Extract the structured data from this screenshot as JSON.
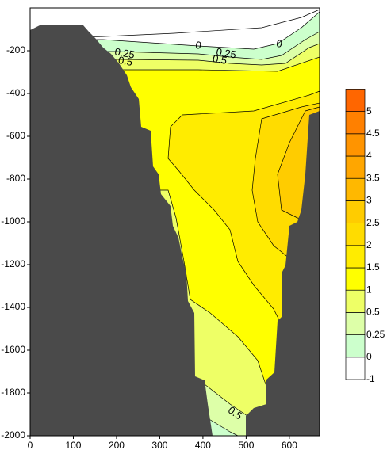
{
  "chart_data": {
    "type": "contour",
    "xlim": [
      0,
      670
    ],
    "xticks": [
      0,
      100,
      200,
      300,
      400,
      500,
      600
    ],
    "ylim": [
      -2000,
      0
    ],
    "yticks": [
      -200,
      -400,
      -600,
      -800,
      -1000,
      -1200,
      -1400,
      -1600,
      -1800,
      -2000
    ],
    "levels": [
      -1,
      0,
      0.25,
      0.5,
      1,
      1.5,
      2,
      2.5,
      3,
      3.5,
      4,
      4.5,
      5
    ],
    "colors": [
      "#ffffff",
      "#ccffcc",
      "#ddffa8",
      "#eeff66",
      "#ffff00",
      "#ffec00",
      "#ffdc00",
      "#ffcc00",
      "#ffb800",
      "#ffa600",
      "#ff9400",
      "#ff8000",
      "#ff6600"
    ],
    "contour_labels": [
      0,
      0,
      0.25,
      0.25,
      0.5,
      0.5,
      0.5
    ]
  }
}
